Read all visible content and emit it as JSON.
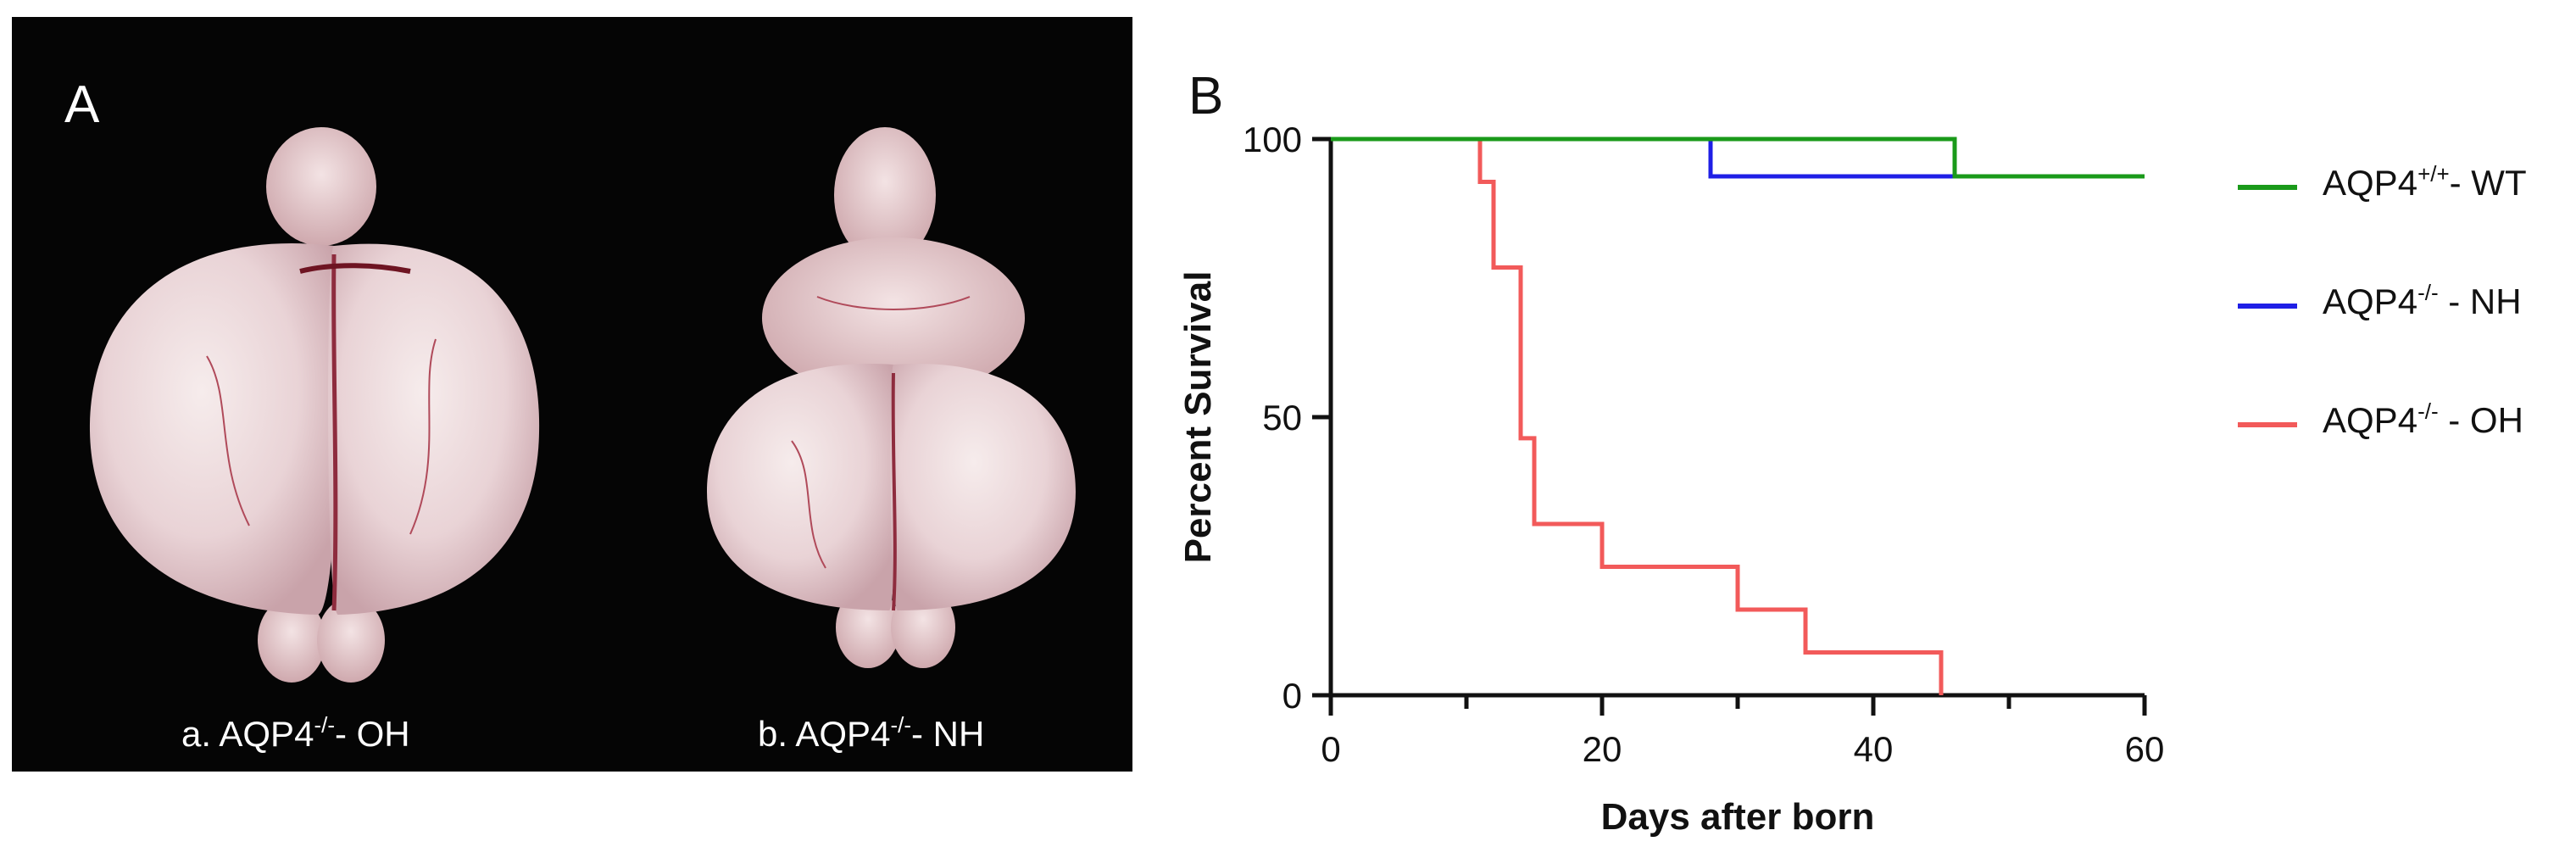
{
  "panel_a": {
    "letter": "A",
    "caption_a": {
      "prefix": "a.  AQP4",
      "sup": "-/-",
      "suffix": "- OH"
    },
    "caption_b": {
      "prefix": "b.  AQP4",
      "sup": "-/-",
      "suffix": "- NH"
    }
  },
  "chart_data": {
    "type": "line",
    "panel_letter": "B",
    "title": "",
    "xlabel": "Days after born",
    "ylabel": "Percent Survival",
    "xlim": [
      0,
      60
    ],
    "ylim": [
      0,
      100
    ],
    "xticks": [
      0,
      20,
      40,
      60
    ],
    "yticks": [
      0,
      50,
      100
    ],
    "grid": false,
    "legend_position": "right",
    "series": [
      {
        "name": "AQP4+/+- WT",
        "legend": {
          "prefix": "AQP4",
          "sup": "+/+",
          "suffix": "- WT"
        },
        "color": "#1a9a1a",
        "steps": [
          [
            0,
            100
          ],
          [
            46,
            100
          ],
          [
            46,
            93.3
          ],
          [
            60,
            93.3
          ]
        ]
      },
      {
        "name": "AQP4-/- - NH",
        "legend": {
          "prefix": "AQP4",
          "sup": "-/-",
          "suffix": " - NH"
        },
        "color": "#1f1fe6",
        "steps": [
          [
            0,
            100
          ],
          [
            28,
            100
          ],
          [
            28,
            93.3
          ],
          [
            60,
            93.3
          ]
        ]
      },
      {
        "name": "AQP4-/- - OH",
        "legend": {
          "prefix": "AQP4",
          "sup": "-/-",
          "suffix": " - OH"
        },
        "color": "#f25a5a",
        "steps": [
          [
            0,
            100
          ],
          [
            11,
            100
          ],
          [
            11,
            92.3
          ],
          [
            12,
            92.3
          ],
          [
            12,
            76.9
          ],
          [
            14,
            76.9
          ],
          [
            14,
            46.2
          ],
          [
            15,
            46.2
          ],
          [
            15,
            30.8
          ],
          [
            20,
            30.8
          ],
          [
            20,
            23.1
          ],
          [
            30,
            23.1
          ],
          [
            30,
            15.4
          ],
          [
            35,
            15.4
          ],
          [
            35,
            7.7
          ],
          [
            45,
            7.7
          ],
          [
            45,
            0
          ]
        ]
      }
    ]
  }
}
